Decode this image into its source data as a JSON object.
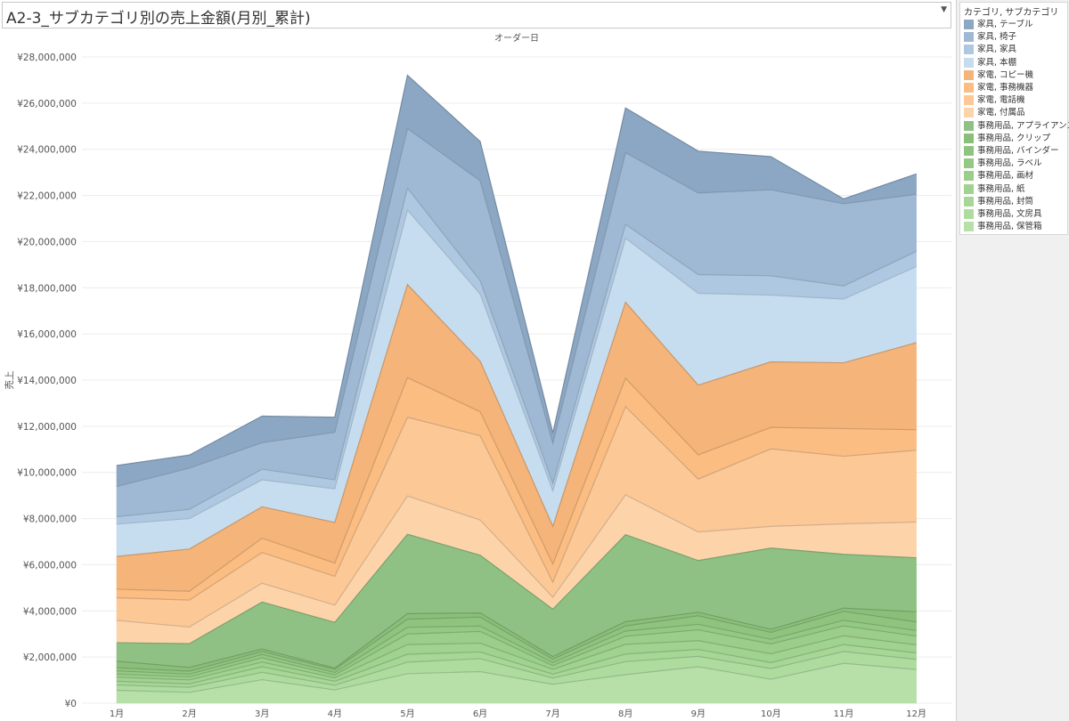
{
  "title": {
    "text": "A2-3_サブカテゴリ別の売上金額(月別_累計)",
    "dropdown_icon": "caret-down-icon"
  },
  "legend": {
    "title": "カテゴリ, サブカテゴリ"
  },
  "chart_data": {
    "type": "area",
    "stacked": true,
    "top_label": "オーダー日",
    "ylabel": "売上",
    "ylim": [
      0,
      28000000
    ],
    "yticks": [
      "¥0",
      "¥2,000,000",
      "¥4,000,000",
      "¥6,000,000",
      "¥8,000,000",
      "¥10,000,000",
      "¥12,000,000",
      "¥14,000,000",
      "¥16,000,000",
      "¥18,000,000",
      "¥20,000,000",
      "¥22,000,000",
      "¥24,000,000",
      "¥26,000,000",
      "¥28,000,000"
    ],
    "categories": [
      "1月",
      "2月",
      "3月",
      "4月",
      "5月",
      "6月",
      "7月",
      "8月",
      "9月",
      "10月",
      "11月",
      "12月"
    ],
    "grid": "horizontal",
    "legend_position": "right",
    "series": [
      {
        "name": "事務用品, 保管箱",
        "color": "#b6e0a8",
        "values": [
          560000,
          470000,
          1020000,
          580000,
          1280000,
          1370000,
          820000,
          1240000,
          1580000,
          1040000,
          1730000,
          1460000
        ]
      },
      {
        "name": "事務用品, 文房具",
        "color": "#aedc9f",
        "values": [
          230000,
          220000,
          320000,
          200000,
          500000,
          560000,
          270000,
          560000,
          450000,
          460000,
          510000,
          440000
        ]
      },
      {
        "name": "事務用品, 封筒",
        "color": "#a6d797",
        "values": [
          160000,
          150000,
          240000,
          170000,
          340000,
          290000,
          170000,
          330000,
          300000,
          260000,
          300000,
          280000
        ]
      },
      {
        "name": "事務用品, 紙",
        "color": "#a0d290",
        "values": [
          180000,
          170000,
          200000,
          150000,
          420000,
          380000,
          210000,
          420000,
          380000,
          380000,
          380000,
          350000
        ]
      },
      {
        "name": "事務用品, 画材",
        "color": "#9ace8a",
        "values": [
          130000,
          130000,
          190000,
          120000,
          460000,
          510000,
          160000,
          350000,
          470000,
          430000,
          430000,
          380000
        ]
      },
      {
        "name": "事務用品, ラベル",
        "color": "#94c984",
        "values": [
          140000,
          120000,
          140000,
          110000,
          290000,
          230000,
          130000,
          230000,
          240000,
          200000,
          240000,
          240000
        ]
      },
      {
        "name": "事務用品, バインダー",
        "color": "#8fc47f",
        "values": [
          140000,
          130000,
          130000,
          130000,
          350000,
          390000,
          150000,
          220000,
          370000,
          300000,
          390000,
          370000
        ]
      },
      {
        "name": "事務用品, クリップ",
        "color": "#8abf7a",
        "values": [
          280000,
          160000,
          110000,
          60000,
          240000,
          180000,
          110000,
          180000,
          150000,
          130000,
          140000,
          440000
        ]
      },
      {
        "name": "事務用品, アプライアンス",
        "color": "#8fc184",
        "values": [
          800000,
          1030000,
          2030000,
          1980000,
          3440000,
          2500000,
          2050000,
          3770000,
          2240000,
          3520000,
          2330000,
          2340000
        ]
      },
      {
        "name": "家電, 付属品",
        "color": "#fdd4aa",
        "values": [
          970000,
          720000,
          820000,
          750000,
          1660000,
          1530000,
          520000,
          1730000,
          1240000,
          940000,
          1320000,
          1550000
        ]
      },
      {
        "name": "家電, 電話機",
        "color": "#fcc896",
        "values": [
          980000,
          1170000,
          1330000,
          1250000,
          3410000,
          3650000,
          650000,
          3820000,
          2290000,
          3360000,
          2930000,
          3110000
        ]
      },
      {
        "name": "家電, 事務機器",
        "color": "#fbbd82",
        "values": [
          370000,
          380000,
          620000,
          570000,
          1720000,
          1040000,
          790000,
          1230000,
          1050000,
          930000,
          1200000,
          890000
        ]
      },
      {
        "name": "家電, コピー機",
        "color": "#f4b47a",
        "values": [
          1420000,
          1830000,
          1360000,
          1760000,
          4030000,
          2190000,
          1630000,
          3290000,
          3020000,
          2840000,
          2850000,
          3770000
        ]
      },
      {
        "name": "家具, 本棚",
        "color": "#c6ddf0",
        "values": [
          1400000,
          1320000,
          1170000,
          1460000,
          3230000,
          2910000,
          1540000,
          2780000,
          3980000,
          2890000,
          2760000,
          3300000
        ]
      },
      {
        "name": "家具, 家具",
        "color": "#adc8e0",
        "values": [
          320000,
          400000,
          460000,
          390000,
          950000,
          580000,
          330000,
          600000,
          810000,
          840000,
          570000,
          660000
        ]
      },
      {
        "name": "家具, 椅子",
        "color": "#9fb8d4",
        "values": [
          1310000,
          1790000,
          1150000,
          2060000,
          2580000,
          4330000,
          1740000,
          3110000,
          3540000,
          3730000,
          3560000,
          2470000
        ]
      },
      {
        "name": "家具, テーブル",
        "color": "#8ba7c4",
        "values": [
          910000,
          560000,
          1150000,
          650000,
          2310000,
          1700000,
          440000,
          1930000,
          1810000,
          1430000,
          210000,
          880000
        ]
      }
    ]
  }
}
